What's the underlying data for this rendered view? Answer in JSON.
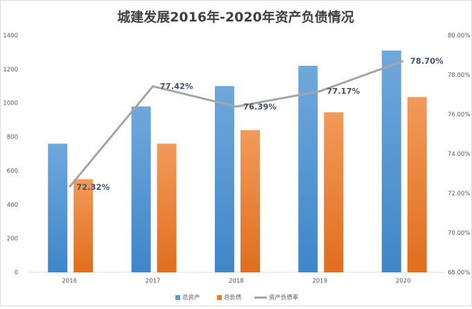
{
  "chart_data": {
    "type": "bar",
    "title": "城建发展2016年-2020年资产负债情况",
    "categories": [
      "2016",
      "2017",
      "2018",
      "2019",
      "2020"
    ],
    "series": [
      {
        "name": "总资产",
        "kind": "bar",
        "axis": "left",
        "color": "#5B9BD5",
        "values": [
          760,
          980,
          1100,
          1220,
          1310
        ]
      },
      {
        "name": "总负债",
        "kind": "bar",
        "axis": "left",
        "color": "#ED7D31",
        "values": [
          550,
          760,
          840,
          945,
          1035
        ]
      },
      {
        "name": "资产负债率",
        "kind": "line",
        "axis": "right",
        "color": "#A5A5A5",
        "values": [
          72.32,
          77.42,
          76.39,
          77.17,
          78.7
        ],
        "labels": [
          "72.32%",
          "77.42%",
          "76.39%",
          "77.17%",
          "78.70%"
        ]
      }
    ],
    "y_left": {
      "min": 0,
      "max": 1400,
      "ticks": [
        "0",
        "200",
        "400",
        "600",
        "800",
        "1000",
        "1200",
        "1400"
      ]
    },
    "y_right": {
      "min": 68,
      "max": 80,
      "ticks": [
        "68.00%",
        "70.00%",
        "72.00%",
        "74.00%",
        "76.00%",
        "78.00%",
        "80.00%"
      ]
    },
    "grid": false,
    "legend_position": "bottom"
  }
}
